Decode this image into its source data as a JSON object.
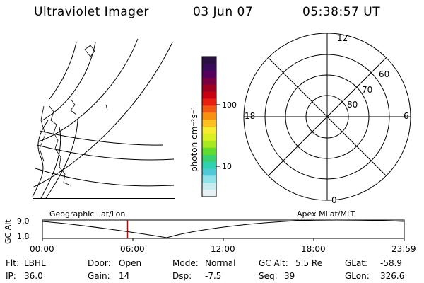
{
  "header": {
    "title": "Ultraviolet Imager",
    "date": "03 Jun 07",
    "time": "05:38:57 UT"
  },
  "colorbar": {
    "unit_label": "photon cm⁻²s⁻¹",
    "ticks": [
      "100",
      "10"
    ],
    "colors": [
      "#2a1040",
      "#3a0a5a",
      "#55005a",
      "#7a0044",
      "#a00020",
      "#c80010",
      "#e82010",
      "#f05a10",
      "#f89010",
      "#fbc020",
      "#f6ec30",
      "#d8f020",
      "#a8e820",
      "#60dc30",
      "#38d070",
      "#30d0b0",
      "#50c8d8",
      "#90e0e8",
      "#c8ecf0",
      "#e8f2f4"
    ]
  },
  "polar": {
    "mlt_labels": {
      "top": "12",
      "left": "18",
      "right": "6",
      "bottom": "0"
    },
    "lat_labels": [
      "60",
      "70",
      "80"
    ]
  },
  "timeline": {
    "left_label": "Geographic Lat/Lon",
    "right_label": "Apex MLat/MLT",
    "y_axis": "GC Alt",
    "y_ticks": [
      "9.0",
      "1.8"
    ],
    "x_ticks": [
      "00:00",
      "06:00",
      "12:00",
      "18:00",
      "23:59"
    ],
    "current_time_hours": 5.65,
    "marker_color": "#cc0000"
  },
  "info": {
    "flt_label": "Flt:",
    "flt_value": "LBHL",
    "ip_label": "IP:",
    "ip_value": "36.0",
    "door_label": "Door:",
    "door_value": "Open",
    "gain_label": "Gain:",
    "gain_value": "14",
    "mode_label": "Mode:",
    "mode_value": "Normal",
    "dsp_label": "Dsp:",
    "dsp_value": "-7.5",
    "gcalt_label": "GC Alt:",
    "gcalt_value": "5.5 Re",
    "seq_label": "Seq:",
    "seq_value": "39",
    "glat_label": "GLat:",
    "glat_value": "-58.9",
    "glon_label": "GLon:",
    "glon_value": "326.6"
  }
}
